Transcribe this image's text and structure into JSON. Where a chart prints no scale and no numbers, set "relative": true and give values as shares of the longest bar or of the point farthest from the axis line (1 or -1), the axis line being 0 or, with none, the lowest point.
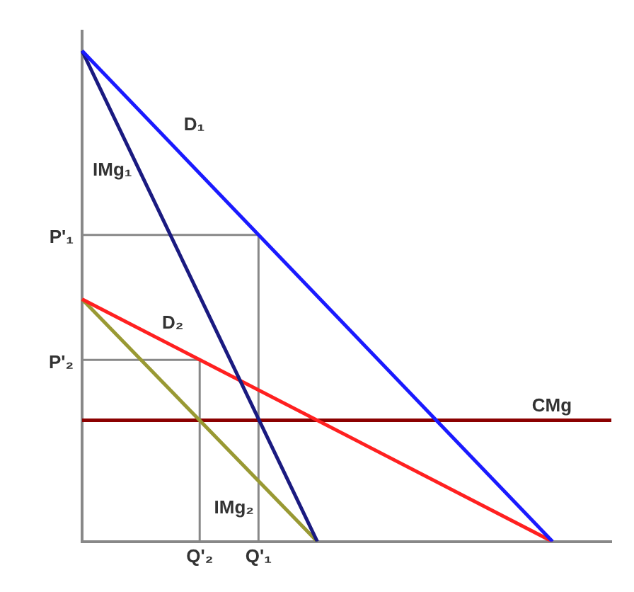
{
  "chart_data": {
    "type": "line",
    "relative": true,
    "marker": "none",
    "grid": false,
    "legend": false,
    "categories": [
      null,
      null,
      "Q'₂",
      "Q'₁",
      null,
      null,
      null,
      null,
      null,
      null
    ],
    "series": [
      {
        "name": "D₁",
        "color": "#1a1aff",
        "values": [
          1,
          null,
          null,
          null,
          null,
          null,
          null,
          null,
          0,
          null
        ]
      },
      {
        "name": "IMg₁",
        "color": "#1a1a80",
        "values": [
          1,
          null,
          null,
          null,
          0,
          null,
          null,
          null,
          null,
          null
        ]
      },
      {
        "name": "D₂",
        "color": "#ff2020",
        "values": [
          0.494,
          null,
          null,
          null,
          null,
          null,
          null,
          null,
          0,
          null
        ]
      },
      {
        "name": "IMg₂",
        "color": "#999933",
        "values": [
          0.494,
          null,
          null,
          null,
          0,
          null,
          null,
          null,
          null,
          null
        ]
      },
      {
        "name": "CMg",
        "color": "#8b0000",
        "values": [
          0.247,
          null,
          null,
          null,
          null,
          null,
          null,
          null,
          null,
          0.247
        ]
      }
    ],
    "ref_lines": [
      {
        "axis": "y",
        "value": 0.625,
        "label": "P'₁",
        "color": "#888888"
      },
      {
        "axis": "y",
        "value": 0.37,
        "label": "P'₂",
        "color": "#888888"
      },
      {
        "axis": "x",
        "value": "Q'₁",
        "color": "#888888"
      },
      {
        "axis": "x",
        "value": "Q'₂",
        "color": "#888888"
      }
    ]
  }
}
